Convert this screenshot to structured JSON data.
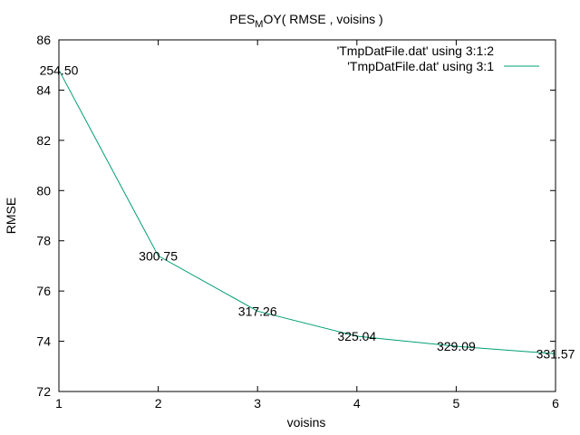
{
  "chart_data": {
    "type": "line",
    "title_main": "PES",
    "title_sub": "M",
    "title_rest": "OY( RMSE , voisins )",
    "xlabel": "voisins",
    "ylabel": "RMSE",
    "xlim": [
      1,
      6
    ],
    "ylim": [
      72,
      86
    ],
    "xticks": [
      1,
      2,
      3,
      4,
      5,
      6
    ],
    "yticks": [
      72,
      74,
      76,
      78,
      80,
      82,
      84,
      86
    ],
    "grid": false,
    "legend_position": "top-right",
    "series": [
      {
        "name": "'TmpDatFile.dat' using 3:1",
        "color": "#009e73",
        "x": [
          1,
          2,
          3,
          4,
          5,
          6
        ],
        "y": [
          84.8,
          77.4,
          75.2,
          74.2,
          73.8,
          73.5
        ]
      }
    ],
    "point_labels": {
      "legend_name": "'TmpDatFile.dat' using 3:1:2",
      "labels": [
        "254.50",
        "300.75",
        "317.26",
        "325.04",
        "329.09",
        "331.57"
      ]
    }
  }
}
